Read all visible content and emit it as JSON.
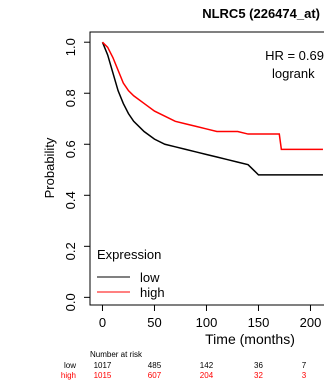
{
  "chart_data": {
    "type": "line",
    "title": "NLRC5 (226474_at)",
    "x_label": "Time (months)",
    "y_label": "Probability",
    "annotations": [
      "HR = 0.69",
      "logrank"
    ],
    "legend_title": "Expression",
    "x": [
      0,
      5,
      10,
      15,
      20,
      25,
      30,
      40,
      50,
      60,
      70,
      80,
      90,
      100,
      110,
      120,
      130,
      140,
      150,
      160,
      170,
      172,
      180,
      200,
      212
    ],
    "series": [
      {
        "name": "low",
        "color": "#000000",
        "values": [
          1.0,
          0.95,
          0.88,
          0.81,
          0.76,
          0.72,
          0.69,
          0.65,
          0.62,
          0.6,
          0.59,
          0.58,
          0.57,
          0.56,
          0.55,
          0.54,
          0.53,
          0.52,
          0.48,
          0.48,
          0.48,
          0.48,
          0.48,
          0.48,
          0.48
        ]
      },
      {
        "name": "high",
        "color": "#ff0000",
        "values": [
          1.0,
          0.98,
          0.94,
          0.89,
          0.84,
          0.81,
          0.79,
          0.76,
          0.73,
          0.71,
          0.69,
          0.68,
          0.67,
          0.66,
          0.65,
          0.65,
          0.65,
          0.64,
          0.64,
          0.64,
          0.64,
          0.58,
          0.58,
          0.58,
          0.58
        ]
      }
    ],
    "xlim": [
      -12,
      213
    ],
    "ylim": [
      -0.03,
      1.04
    ],
    "xticks": [
      0,
      50,
      100,
      150,
      200
    ],
    "yticks": [
      {
        "value": 0,
        "label": "0.0"
      },
      {
        "value": 0.2,
        "label": "0.2"
      },
      {
        "value": 0.4,
        "label": "0.4"
      },
      {
        "value": 0.6,
        "label": "0.6"
      },
      {
        "value": 0.8,
        "label": "0.8"
      },
      {
        "value": 1,
        "label": "1.0"
      }
    ],
    "at_risk": {
      "title": "Number at risk",
      "rows": [
        {
          "name": "low",
          "color": "#000000",
          "values": [
            1017,
            485,
            142,
            36,
            7
          ]
        },
        {
          "name": "high",
          "color": "#ff0000",
          "values": [
            1015,
            607,
            204,
            32,
            3
          ]
        }
      ]
    }
  }
}
